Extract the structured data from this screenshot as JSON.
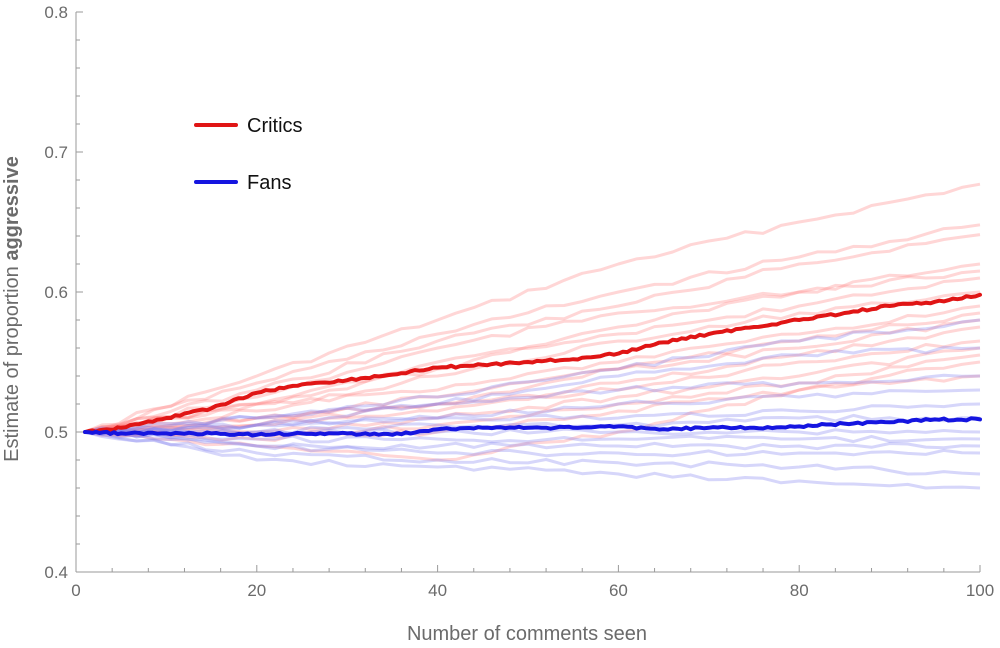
{
  "chart_data": {
    "type": "line",
    "xlabel": "Number of comments seen",
    "ylabel_prefix": "Estimate of proportion ",
    "ylabel_bold": "aggressive",
    "xlim": [
      0,
      100
    ],
    "ylim": [
      0.4,
      0.8
    ],
    "x_ticks": [
      0,
      20,
      40,
      60,
      80,
      100
    ],
    "x_tick_labels": [
      "0",
      "20",
      "40",
      "60",
      "80",
      "100"
    ],
    "y_ticks": [
      0.4,
      0.5,
      0.6,
      0.7,
      0.8
    ],
    "y_tick_labels": [
      "0.4",
      "0.5",
      "0.6",
      "0.7",
      "0.8"
    ],
    "legend_position": "upper-left",
    "colors": {
      "critics": "#e01515",
      "fans": "#1515e0",
      "critics_faint": "#ff8080",
      "fans_faint": "#8080f0"
    },
    "series": [
      {
        "name": "Critics",
        "key": "critics",
        "x": [
          1,
          5,
          10,
          15,
          20,
          25,
          30,
          35,
          40,
          45,
          50,
          55,
          60,
          65,
          70,
          75,
          80,
          85,
          90,
          95,
          100
        ],
        "values": [
          0.5,
          0.503,
          0.51,
          0.517,
          0.528,
          0.534,
          0.537,
          0.541,
          0.546,
          0.548,
          0.55,
          0.552,
          0.556,
          0.564,
          0.57,
          0.575,
          0.58,
          0.585,
          0.59,
          0.593,
          0.598
        ]
      },
      {
        "name": "Fans",
        "key": "fans",
        "x": [
          1,
          5,
          10,
          15,
          20,
          25,
          30,
          35,
          40,
          45,
          50,
          55,
          60,
          65,
          70,
          75,
          80,
          85,
          90,
          95,
          100
        ],
        "values": [
          0.5,
          0.499,
          0.499,
          0.499,
          0.498,
          0.499,
          0.499,
          0.498,
          0.502,
          0.503,
          0.503,
          0.503,
          0.504,
          0.502,
          0.503,
          0.503,
          0.504,
          0.506,
          0.507,
          0.509,
          0.509
        ]
      }
    ],
    "faint_series": [
      {
        "key": "critics",
        "x": [
          1,
          20,
          40,
          60,
          80,
          100
        ],
        "values": [
          0.5,
          0.54,
          0.58,
          0.62,
          0.65,
          0.677
        ]
      },
      {
        "key": "critics",
        "x": [
          1,
          20,
          40,
          60,
          80,
          100
        ],
        "values": [
          0.5,
          0.535,
          0.57,
          0.6,
          0.625,
          0.648
        ]
      },
      {
        "key": "critics",
        "x": [
          1,
          20,
          40,
          60,
          80,
          100
        ],
        "values": [
          0.5,
          0.53,
          0.565,
          0.59,
          0.62,
          0.641
        ]
      },
      {
        "key": "critics",
        "x": [
          1,
          20,
          40,
          60,
          80,
          100
        ],
        "values": [
          0.5,
          0.525,
          0.56,
          0.585,
          0.6,
          0.62
        ]
      },
      {
        "key": "critics",
        "x": [
          1,
          20,
          40,
          60,
          80,
          100
        ],
        "values": [
          0.5,
          0.52,
          0.545,
          0.575,
          0.6,
          0.615
        ]
      },
      {
        "key": "critics",
        "x": [
          1,
          20,
          40,
          60,
          80,
          100
        ],
        "values": [
          0.5,
          0.52,
          0.55,
          0.57,
          0.59,
          0.61
        ]
      },
      {
        "key": "critics",
        "x": [
          1,
          20,
          40,
          60,
          80,
          100
        ],
        "values": [
          0.5,
          0.515,
          0.54,
          0.565,
          0.585,
          0.6
        ]
      },
      {
        "key": "critics",
        "x": [
          1,
          20,
          40,
          60,
          80,
          100
        ],
        "values": [
          0.5,
          0.52,
          0.53,
          0.55,
          0.57,
          0.59
        ]
      },
      {
        "key": "critics",
        "x": [
          1,
          20,
          40,
          60,
          80,
          100
        ],
        "values": [
          0.5,
          0.51,
          0.525,
          0.545,
          0.565,
          0.585
        ]
      },
      {
        "key": "critics",
        "x": [
          1,
          20,
          40,
          60,
          80,
          100
        ],
        "values": [
          0.5,
          0.51,
          0.52,
          0.545,
          0.56,
          0.58
        ]
      },
      {
        "key": "critics",
        "x": [
          1,
          20,
          40,
          60,
          80,
          100
        ],
        "values": [
          0.5,
          0.505,
          0.515,
          0.535,
          0.555,
          0.575
        ]
      },
      {
        "key": "critics",
        "x": [
          1,
          20,
          40,
          60,
          80,
          100
        ],
        "values": [
          0.5,
          0.505,
          0.52,
          0.53,
          0.55,
          0.565
        ]
      },
      {
        "key": "critics",
        "x": [
          1,
          20,
          40,
          60,
          80,
          100
        ],
        "values": [
          0.5,
          0.5,
          0.51,
          0.525,
          0.54,
          0.56
        ]
      },
      {
        "key": "critics",
        "x": [
          1,
          20,
          40,
          60,
          80,
          100
        ],
        "values": [
          0.5,
          0.495,
          0.505,
          0.52,
          0.535,
          0.555
        ]
      },
      {
        "key": "critics",
        "x": [
          1,
          20,
          40,
          60,
          80,
          100
        ],
        "values": [
          0.5,
          0.49,
          0.48,
          0.5,
          0.53,
          0.55
        ]
      },
      {
        "key": "critics",
        "x": [
          1,
          20,
          40,
          60,
          80,
          100
        ],
        "values": [
          0.5,
          0.498,
          0.5,
          0.515,
          0.53,
          0.54
        ]
      },
      {
        "key": "fans",
        "x": [
          1,
          20,
          40,
          60,
          80,
          100
        ],
        "values": [
          0.5,
          0.51,
          0.52,
          0.53,
          0.535,
          0.54
        ]
      },
      {
        "key": "fans",
        "x": [
          1,
          20,
          40,
          60,
          80,
          100
        ],
        "values": [
          0.5,
          0.505,
          0.51,
          0.52,
          0.525,
          0.53
        ]
      },
      {
        "key": "fans",
        "x": [
          1,
          20,
          40,
          60,
          80,
          100
        ],
        "values": [
          0.5,
          0.505,
          0.51,
          0.51,
          0.515,
          0.52
        ]
      },
      {
        "key": "fans",
        "x": [
          1,
          20,
          40,
          60,
          80,
          100
        ],
        "values": [
          0.5,
          0.5,
          0.505,
          0.505,
          0.51,
          0.51
        ]
      },
      {
        "key": "fans",
        "x": [
          1,
          20,
          40,
          60,
          80,
          100
        ],
        "values": [
          0.5,
          0.5,
          0.5,
          0.5,
          0.5,
          0.5
        ]
      },
      {
        "key": "fans",
        "x": [
          1,
          20,
          40,
          60,
          80,
          100
        ],
        "values": [
          0.5,
          0.495,
          0.495,
          0.495,
          0.495,
          0.495
        ]
      },
      {
        "key": "fans",
        "x": [
          1,
          20,
          40,
          60,
          80,
          100
        ],
        "values": [
          0.5,
          0.49,
          0.49,
          0.49,
          0.49,
          0.49
        ]
      },
      {
        "key": "fans",
        "x": [
          1,
          20,
          40,
          60,
          80,
          100
        ],
        "values": [
          0.5,
          0.49,
          0.485,
          0.485,
          0.485,
          0.485
        ]
      },
      {
        "key": "fans",
        "x": [
          1,
          20,
          40,
          60,
          80,
          100
        ],
        "values": [
          0.5,
          0.485,
          0.48,
          0.478,
          0.475,
          0.47
        ]
      },
      {
        "key": "fans",
        "x": [
          1,
          20,
          40,
          60,
          80,
          100
        ],
        "values": [
          0.5,
          0.48,
          0.475,
          0.47,
          0.465,
          0.46
        ]
      },
      {
        "key": "fans",
        "x": [
          1,
          20,
          40,
          60,
          80,
          100
        ],
        "values": [
          0.5,
          0.51,
          0.525,
          0.545,
          0.565,
          0.58
        ]
      },
      {
        "key": "fans",
        "x": [
          1,
          20,
          40,
          60,
          80,
          100
        ],
        "values": [
          0.5,
          0.505,
          0.52,
          0.54,
          0.555,
          0.56
        ]
      }
    ]
  }
}
